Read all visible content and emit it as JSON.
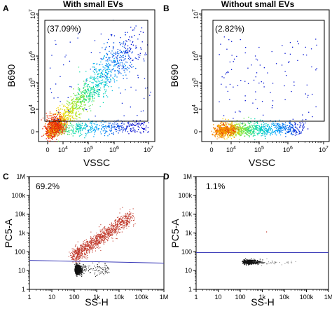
{
  "chart_data": [
    {
      "panel": "A",
      "type": "scatter",
      "title": "With small EVs",
      "xlabel": "VSSC",
      "ylabel": "B690",
      "x_scale": "log",
      "y_scale": "log",
      "xticks": [
        "0",
        "10^4",
        "10^5",
        "10^6",
        "10^7"
      ],
      "yticks": [
        "0",
        "10^4",
        "10^5",
        "10^6",
        "10^7"
      ],
      "gate_label": "(37.09%)",
      "gate_percent": 37.09,
      "gate_x_range": [
        "10^3.6",
        "10^7"
      ],
      "gate_y_range": [
        "10^3.6",
        "10^7"
      ],
      "colormap": "density (blue-cyan-yellow-red)"
    },
    {
      "panel": "B",
      "type": "scatter",
      "title": "Without small EVs",
      "xlabel": "VSSC",
      "ylabel": "B690",
      "x_scale": "log",
      "y_scale": "log",
      "xticks": [
        "0",
        "10^4",
        "10^5",
        "10^6",
        "10^7"
      ],
      "yticks": [
        "0",
        "10^4",
        "10^5",
        "10^6",
        "10^7"
      ],
      "gate_label": "(2.82%)",
      "gate_percent": 2.82,
      "gate_x_range": [
        "10^3.6",
        "10^7"
      ],
      "gate_y_range": [
        "10^3.6",
        "10^7"
      ],
      "colormap": "density (blue-cyan-yellow-red)"
    },
    {
      "panel": "C",
      "type": "scatter",
      "xlabel": "SS-H",
      "ylabel": "PC5-A",
      "x_scale": "log",
      "y_scale": "log",
      "xticks": [
        "1",
        "10",
        "100",
        "1k",
        "10k",
        "100k",
        "1M"
      ],
      "yticks": [
        "1",
        "10",
        "100",
        "1k",
        "10k",
        "100k",
        "1M"
      ],
      "gate_label": "69.2%",
      "gate_percent": 69.2,
      "gate_line": {
        "x": [
          1,
          1000000
        ],
        "y": [
          35,
          25
        ],
        "color": "#3b3bb8"
      },
      "point_colors": {
        "above_gate": "#c0392b",
        "below_gate": "#111111"
      }
    },
    {
      "panel": "D",
      "type": "scatter",
      "xlabel": "SS-H",
      "ylabel": "PC5-A",
      "x_scale": "log",
      "y_scale": "log",
      "xticks": [
        "1",
        "10",
        "100",
        "1k",
        "10k",
        "100k",
        "1M"
      ],
      "yticks": [
        "1",
        "10",
        "100",
        "1k",
        "10k",
        "100k",
        "1M"
      ],
      "gate_label": "1.1%",
      "gate_percent": 1.1,
      "gate_line": {
        "x": [
          1,
          1000000
        ],
        "y": [
          90,
          90
        ],
        "color": "#3b3bb8"
      },
      "point_colors": {
        "above_gate": "#c0392b",
        "below_gate": "#111111"
      }
    }
  ]
}
